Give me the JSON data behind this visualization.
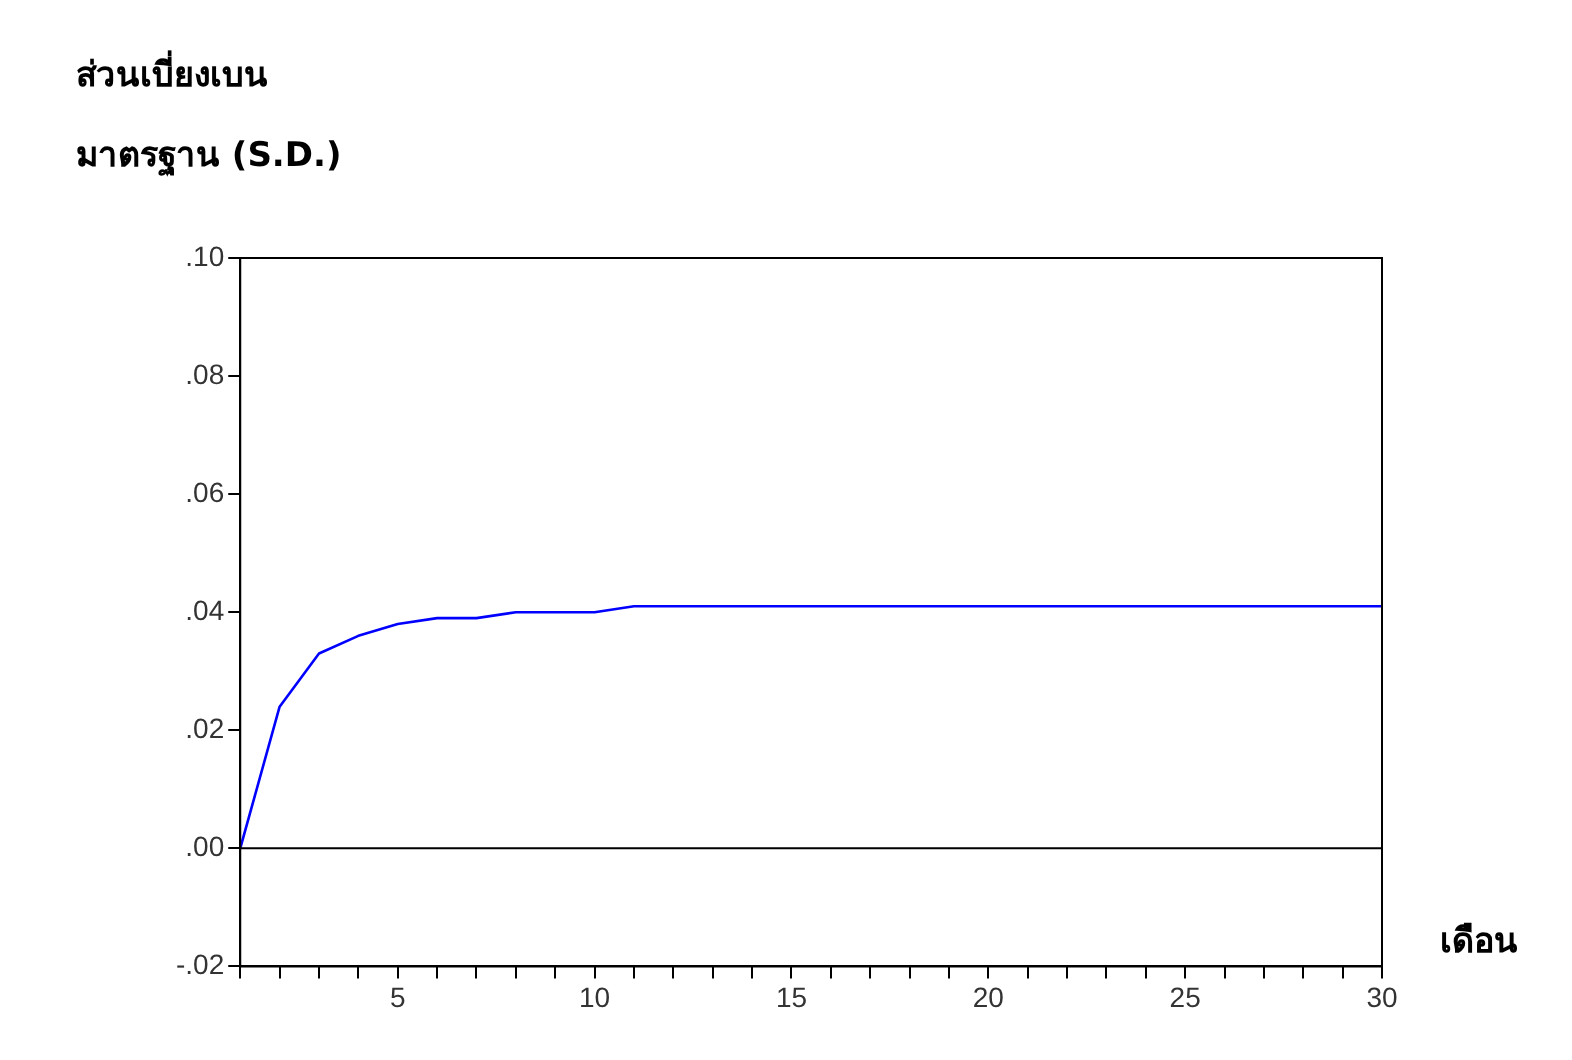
{
  "chart_data": {
    "type": "line",
    "ylabel": "ส่วนเบี่ยงเบน\nมาตรฐาน (S.D.)",
    "xlabel": "เดือน",
    "x": [
      1,
      2,
      3,
      4,
      5,
      6,
      7,
      8,
      9,
      10,
      11,
      12,
      13,
      14,
      15,
      16,
      17,
      18,
      19,
      20,
      21,
      22,
      23,
      24,
      25,
      26,
      27,
      28,
      29,
      30
    ],
    "series": [
      {
        "color": "#0000ff",
        "values": [
          0,
          0.024,
          0.033,
          0.036,
          0.038,
          0.039,
          0.039,
          0.04,
          0.04,
          0.04,
          0.041,
          0.041,
          0.041,
          0.041,
          0.041,
          0.041,
          0.041,
          0.041,
          0.041,
          0.041,
          0.041,
          0.041,
          0.041,
          0.041,
          0.041,
          0.041,
          0.041,
          0.041,
          0.041,
          0.041
        ]
      }
    ],
    "xlim": [
      1,
      30
    ],
    "xticks": [
      {
        "value": 1,
        "label": null
      },
      {
        "value": 2,
        "label": null
      },
      {
        "value": 3,
        "label": null
      },
      {
        "value": 4,
        "label": null
      },
      5,
      {
        "value": 6,
        "label": null
      },
      {
        "value": 7,
        "label": null
      },
      {
        "value": 8,
        "label": null
      },
      {
        "value": 9,
        "label": null
      },
      10,
      {
        "value": 11,
        "label": null
      },
      {
        "value": 12,
        "label": null
      },
      {
        "value": 13,
        "label": null
      },
      {
        "value": 14,
        "label": null
      },
      15,
      {
        "value": 16,
        "label": null
      },
      {
        "value": 17,
        "label": null
      },
      {
        "value": 18,
        "label": null
      },
      {
        "value": 19,
        "label": null
      },
      20,
      {
        "value": 21,
        "label": null
      },
      {
        "value": 22,
        "label": null
      },
      {
        "value": 23,
        "label": null
      },
      {
        "value": 24,
        "label": null
      },
      25,
      {
        "value": 26,
        "label": null
      },
      {
        "value": 27,
        "label": null
      },
      {
        "value": 28,
        "label": null
      },
      {
        "value": 29,
        "label": null
      },
      30
    ],
    "ylim": [
      -0.02,
      0.1
    ],
    "yticks": [
      {
        "value": -0.02,
        "label": "-.02"
      },
      {
        "value": 0,
        "label": ".00"
      },
      {
        "value": 0.02,
        "label": ".02"
      },
      {
        "value": 0.04,
        "label": ".04"
      },
      {
        "value": 0.06,
        "label": ".06"
      },
      {
        "value": 0.08,
        "label": ".08"
      },
      {
        "value": 0.1,
        "label": ".10"
      }
    ],
    "ref_lines": [
      {
        "axis": "y",
        "value": 0,
        "color": "#000000"
      }
    ],
    "grid": false,
    "legend": false,
    "marker": "none",
    "line_style": "solid"
  }
}
